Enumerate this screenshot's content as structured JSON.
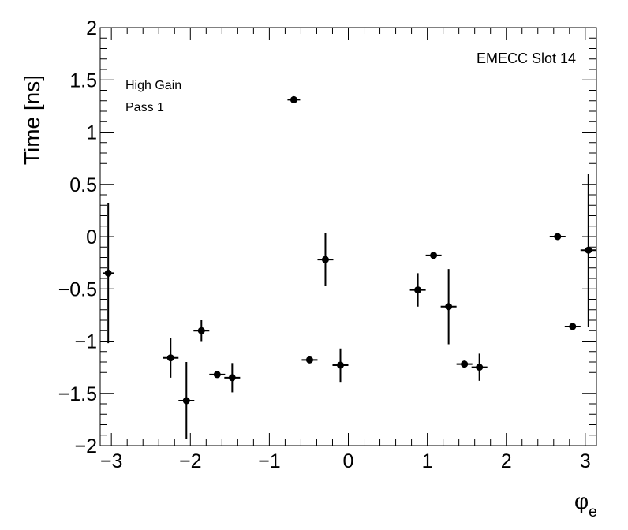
{
  "chart_data": {
    "type": "scatter",
    "xlabel": "φ",
    "xlabel_sub": "e",
    "ylabel": "Time [ns]",
    "xlim": [
      -3.14159,
      3.14159
    ],
    "ylim": [
      -2,
      2
    ],
    "xticks": [
      -3,
      -2,
      -1,
      0,
      1,
      2,
      3
    ],
    "xtick_labels": [
      "−3",
      "−2",
      "−1",
      "0",
      "1",
      "2",
      "3"
    ],
    "yticks": [
      -2,
      -1.5,
      -1,
      -0.5,
      0,
      0.5,
      1,
      1.5,
      2
    ],
    "ytick_labels": [
      "−2",
      "−1.5",
      "−1",
      "−0.5",
      "0",
      "0.5",
      "1",
      "1.5",
      "2"
    ],
    "grid": false,
    "annotations": {
      "gain": "High Gain",
      "pass": "Pass 1",
      "slot": "EMECC Slot 14"
    },
    "points": [
      {
        "x": -3.04,
        "y": -0.35,
        "xerr": 0.07,
        "yerr": 0.67
      },
      {
        "x": -2.25,
        "y": -1.16,
        "xerr": 0.1,
        "yerr": 0.19
      },
      {
        "x": -2.05,
        "y": -1.57,
        "xerr": 0.1,
        "yerr": 0.37
      },
      {
        "x": -1.86,
        "y": -0.9,
        "xerr": 0.1,
        "yerr": 0.1
      },
      {
        "x": -1.66,
        "y": -1.32,
        "xerr": 0.1,
        "yerr": 0.02
      },
      {
        "x": -1.47,
        "y": -1.35,
        "xerr": 0.1,
        "yerr": 0.14
      },
      {
        "x": -0.69,
        "y": 1.31,
        "xerr": 0.08,
        "yerr": 0.0
      },
      {
        "x": -0.49,
        "y": -1.18,
        "xerr": 0.1,
        "yerr": 0.0
      },
      {
        "x": -0.29,
        "y": -0.22,
        "xerr": 0.1,
        "yerr": 0.25
      },
      {
        "x": -0.1,
        "y": -1.23,
        "xerr": 0.1,
        "yerr": 0.16
      },
      {
        "x": 0.88,
        "y": -0.51,
        "xerr": 0.1,
        "yerr": 0.16
      },
      {
        "x": 1.08,
        "y": -0.18,
        "xerr": 0.1,
        "yerr": 0.0
      },
      {
        "x": 1.27,
        "y": -0.67,
        "xerr": 0.1,
        "yerr": 0.36
      },
      {
        "x": 1.47,
        "y": -1.22,
        "xerr": 0.1,
        "yerr": 0.0
      },
      {
        "x": 1.66,
        "y": -1.25,
        "xerr": 0.1,
        "yerr": 0.13
      },
      {
        "x": 2.65,
        "y": 0.0,
        "xerr": 0.1,
        "yerr": 0.0
      },
      {
        "x": 2.84,
        "y": -0.86,
        "xerr": 0.1,
        "yerr": 0.03
      },
      {
        "x": 3.04,
        "y": -0.13,
        "xerr": 0.1,
        "yerr": 0.73
      }
    ]
  }
}
